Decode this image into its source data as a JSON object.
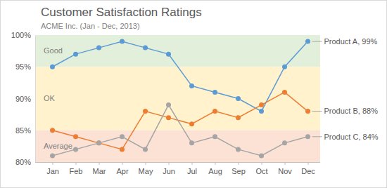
{
  "chart_data": {
    "type": "line",
    "title": "Customer Satisfaction Ratings",
    "subtitle": "ACME Inc. (Jan - Dec, 2013)",
    "categories": [
      "Jan",
      "Feb",
      "Mar",
      "Apr",
      "May",
      "Jun",
      "Jul",
      "Aug",
      "Sep",
      "Oct",
      "Nov",
      "Dec"
    ],
    "ylim": [
      80,
      100
    ],
    "yticks": [
      {
        "value": 80,
        "label": "80%"
      },
      {
        "value": 85,
        "label": "85%"
      },
      {
        "value": 90,
        "label": "90%"
      },
      {
        "value": 95,
        "label": "95%"
      },
      {
        "value": 100,
        "label": "100%"
      }
    ],
    "marker": "circle",
    "bands": [
      {
        "label": "Good",
        "from": 95,
        "to": 100,
        "color": "#e2efda"
      },
      {
        "label": "OK",
        "from": 85,
        "to": 95,
        "color": "#fff2cc"
      },
      {
        "label": "Average",
        "from": 80,
        "to": 85,
        "color": "#fbe2d5"
      }
    ],
    "series": [
      {
        "color": "#5b9bd5",
        "values": [
          95,
          97,
          98,
          99,
          98,
          97,
          92,
          91,
          90,
          88,
          95,
          99
        ],
        "value_labels": [
          null,
          null,
          null,
          null,
          null,
          null,
          null,
          null,
          null,
          null,
          null,
          "Product A, 99%"
        ]
      },
      {
        "color": "#ed7d31",
        "values": [
          85,
          84,
          83,
          82,
          88,
          87,
          86,
          88,
          87,
          89,
          91,
          88
        ],
        "value_labels": [
          null,
          null,
          null,
          null,
          null,
          null,
          null,
          null,
          null,
          null,
          null,
          "Product B, 88%"
        ]
      },
      {
        "color": "#a5a5a5",
        "values": [
          81,
          82,
          83,
          84,
          82,
          89,
          83,
          84,
          82,
          81,
          83,
          84
        ],
        "value_labels": [
          null,
          null,
          null,
          null,
          null,
          null,
          null,
          null,
          null,
          null,
          null,
          "Product C, 84%"
        ]
      }
    ]
  }
}
